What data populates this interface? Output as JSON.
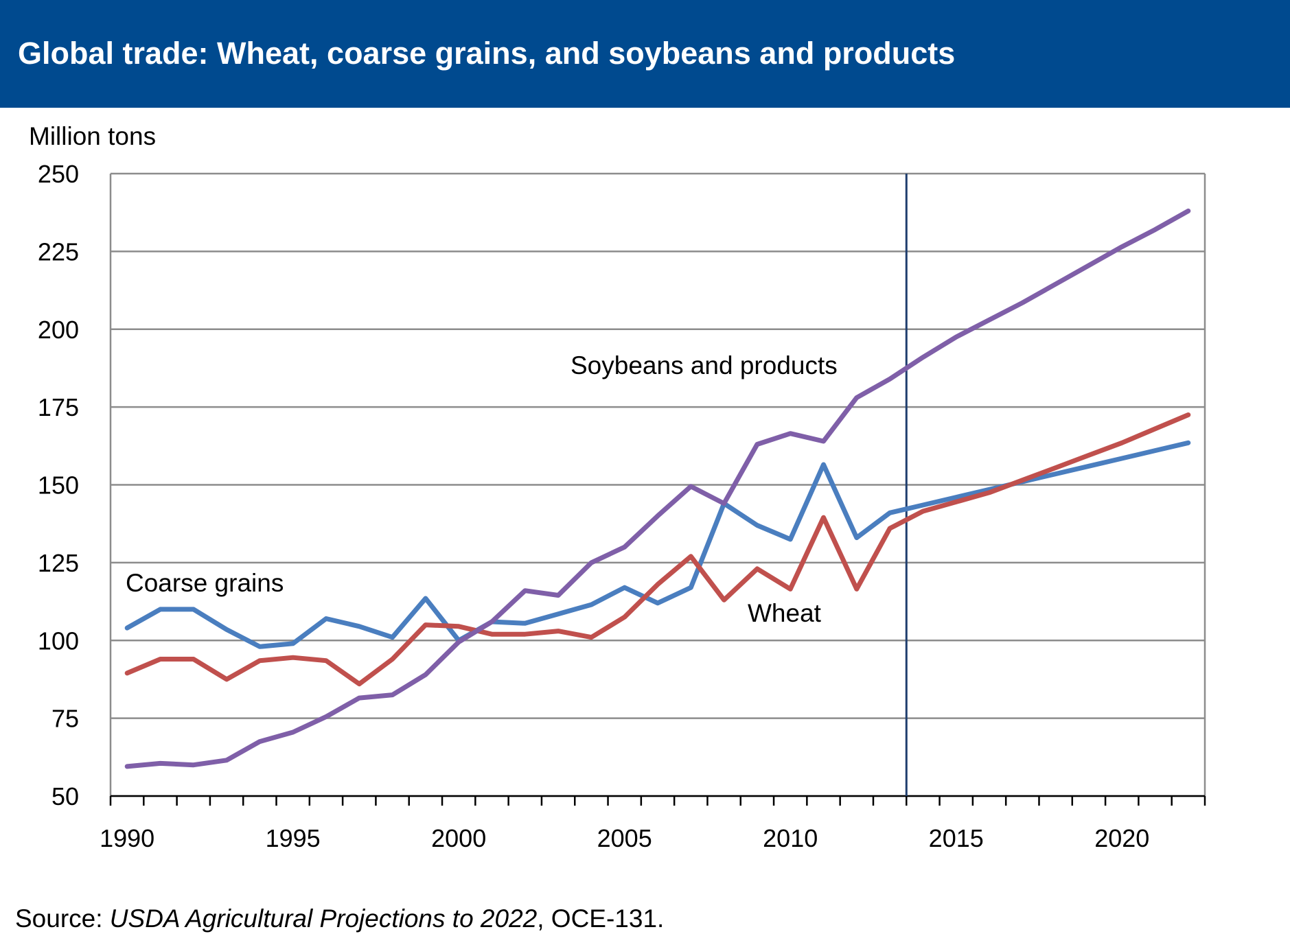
{
  "header": {
    "title": "Global trade: Wheat, coarse grains, and soybeans and products"
  },
  "source": {
    "prefix": "Source: ",
    "publication": "USDA Agricultural Projections to 2022",
    "suffix": ", OCE-131."
  },
  "chart_data": {
    "type": "line",
    "ylabel": "Million tons",
    "ylim": [
      50,
      250
    ],
    "yticks": [
      "50",
      "75",
      "100",
      "125",
      "150",
      "175",
      "200",
      "225",
      "250"
    ],
    "xlim": [
      1989.5,
      2022.5
    ],
    "xtick_labels": [
      "1990",
      "1995",
      "2000",
      "2005",
      "2010",
      "2015",
      "2020"
    ],
    "grid": "horizontal",
    "projection_start_marker": 2013.5,
    "x": [
      1990,
      1991,
      1992,
      1993,
      1994,
      1995,
      1996,
      1997,
      1998,
      1999,
      2000,
      2001,
      2002,
      2003,
      2004,
      2005,
      2006,
      2007,
      2008,
      2009,
      2010,
      2011,
      2012,
      2013,
      2014,
      2015,
      2016,
      2017,
      2018,
      2019,
      2020,
      2021,
      2022
    ],
    "series": [
      {
        "name": "Coarse grains",
        "color": "#4a7ebf",
        "values": [
          104,
          110,
          110,
          103.5,
          98,
          99,
          107,
          104.5,
          101,
          113.5,
          100,
          106,
          105.5,
          108.5,
          111.5,
          117,
          112,
          117,
          144,
          137,
          132.5,
          156.5,
          133,
          141,
          143.5,
          146,
          148.5,
          151,
          153.5,
          156,
          158.5,
          161,
          163.5
        ]
      },
      {
        "name": "Wheat",
        "color": "#c0504d",
        "values": [
          89.5,
          94,
          94,
          87.5,
          93.5,
          94.5,
          93.5,
          86,
          94,
          105,
          104.5,
          102,
          102,
          103,
          101,
          107.5,
          118,
          127,
          113,
          123,
          116.5,
          139.5,
          116.5,
          136,
          141.5,
          144.5,
          147.5,
          151.5,
          155.5,
          159.5,
          163.5,
          168,
          172.5
        ]
      },
      {
        "name": "Soybeans and products",
        "color": "#7f5fa8",
        "values": [
          59.5,
          60.5,
          60,
          61.5,
          67.5,
          70.5,
          75.5,
          81.5,
          82.5,
          89,
          99.5,
          106,
          116,
          114.5,
          125,
          130,
          140,
          149.5,
          144,
          163,
          166.5,
          164,
          178,
          184,
          191,
          197.5,
          203,
          208.5,
          214.5,
          220.5,
          226.5,
          232,
          238
        ]
      }
    ],
    "annotations": [
      "Coarse grains",
      "Wheat",
      "Soybeans and products"
    ]
  }
}
